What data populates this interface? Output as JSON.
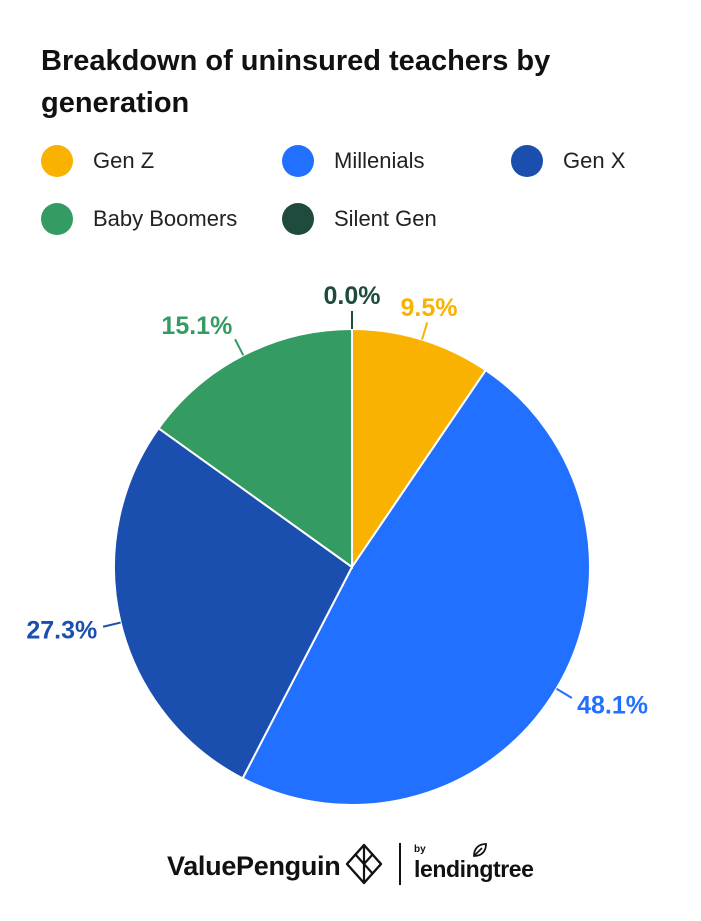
{
  "chart_data": {
    "type": "pie",
    "title": "Breakdown of uninsured teachers by generation",
    "categories": [
      "Gen Z",
      "Millenials",
      "Gen X",
      "Baby Boomers",
      "Silent Gen"
    ],
    "values": [
      9.5,
      48.1,
      27.3,
      15.1,
      0.0
    ],
    "labels": [
      "9.5%",
      "48.1%",
      "27.3%",
      "15.1%",
      "0.0%"
    ],
    "colors": [
      "#F9B200",
      "#2270FF",
      "#1A4FAF",
      "#349B63",
      "#1F4B3E"
    ],
    "legend_position": "top"
  },
  "footer": {
    "brand": "ValuePenguin",
    "by": "by",
    "partner": "lendingtree"
  }
}
